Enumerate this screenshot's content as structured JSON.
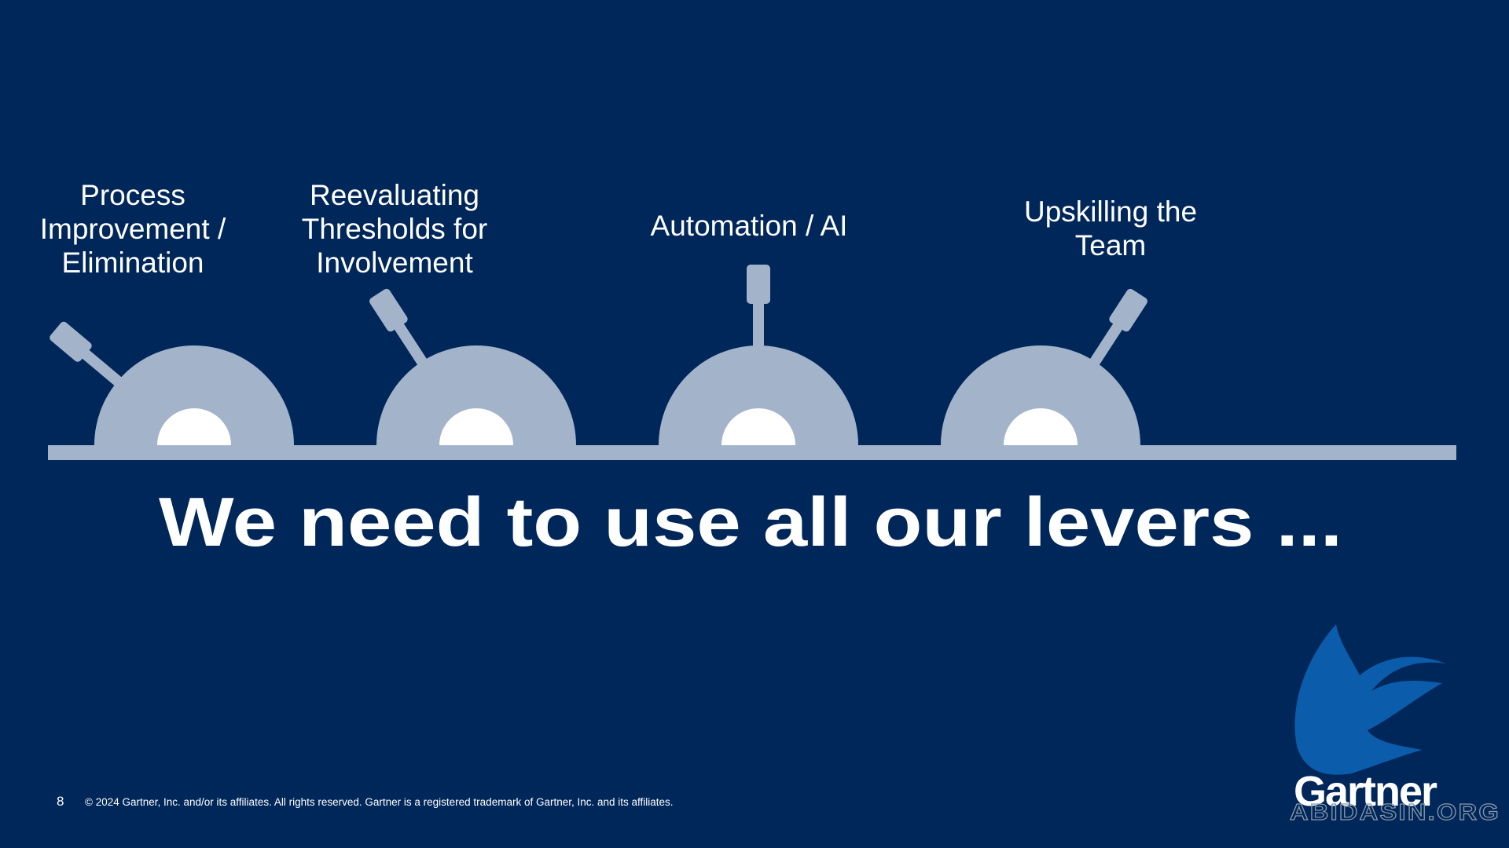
{
  "levers": [
    {
      "label": [
        "Process",
        "Improvement /",
        "Elimination"
      ]
    },
    {
      "label": [
        "Reevaluating",
        "Thresholds for",
        "Involvement"
      ]
    },
    {
      "label": [
        "Automation / AI"
      ]
    },
    {
      "label": [
        "Upskilling the",
        "Team"
      ]
    }
  ],
  "headline": "We need to use all our levers ...",
  "footer": {
    "page_number": "8",
    "copyright": "© 2024 Gartner, Inc. and/or its affiliates. All rights reserved. Gartner is a registered trademark of Gartner, Inc. and its affiliates."
  },
  "logo": "Gartner",
  "watermark": "ABIDASIN.ORG"
}
